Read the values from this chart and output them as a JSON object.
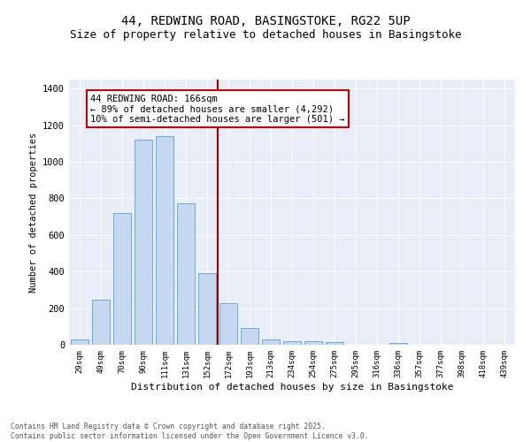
{
  "title": "44, REDWING ROAD, BASINGSTOKE, RG22 5UP",
  "subtitle": "Size of property relative to detached houses in Basingstoke",
  "xlabel": "Distribution of detached houses by size in Basingstoke",
  "ylabel": "Number of detached properties",
  "categories": [
    "29sqm",
    "49sqm",
    "70sqm",
    "90sqm",
    "111sqm",
    "131sqm",
    "152sqm",
    "172sqm",
    "193sqm",
    "213sqm",
    "234sqm",
    "254sqm",
    "275sqm",
    "295sqm",
    "316sqm",
    "336sqm",
    "357sqm",
    "377sqm",
    "398sqm",
    "418sqm",
    "439sqm"
  ],
  "values": [
    28,
    248,
    720,
    1120,
    1140,
    775,
    390,
    225,
    90,
    28,
    20,
    18,
    15,
    0,
    0,
    12,
    0,
    0,
    0,
    0,
    0
  ],
  "bar_color": "#c5d8f0",
  "bar_edge_color": "#6aaad4",
  "vline_x": 6.5,
  "vline_color": "#990000",
  "annotation_text": "44 REDWING ROAD: 166sqm\n← 89% of detached houses are smaller (4,292)\n10% of semi-detached houses are larger (501) →",
  "annotation_box_color": "#ffffff",
  "annotation_box_edge_color": "#cc0000",
  "ylim": [
    0,
    1450
  ],
  "yticks": [
    0,
    200,
    400,
    600,
    800,
    1000,
    1200,
    1400
  ],
  "bg_color": "#e8edf8",
  "footer_line1": "Contains HM Land Registry data © Crown copyright and database right 2025.",
  "footer_line2": "Contains public sector information licensed under the Open Government Licence v3.0.",
  "title_fontsize": 10,
  "subtitle_fontsize": 9,
  "annot_fontsize": 7.5
}
